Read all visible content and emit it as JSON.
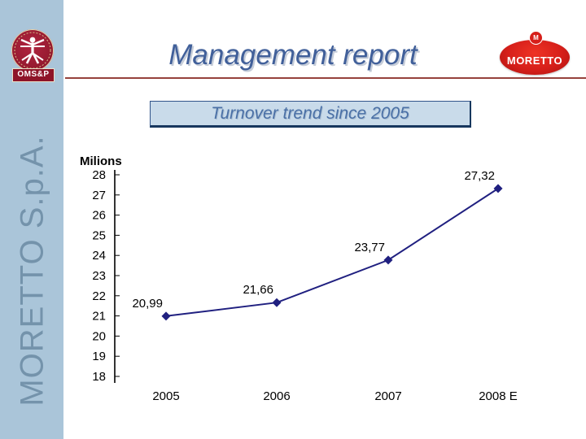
{
  "sidebar": {
    "company": "MORETTO S.p.A."
  },
  "logos": {
    "omsp_label": "OMS&P",
    "moretto_label": "MORETTO",
    "moretto_emblem": "M"
  },
  "header": {
    "title": "Management report"
  },
  "slide": {
    "subtitle": "Turnover trend since 2005"
  },
  "chart_data": {
    "type": "line",
    "title": "Turnover trend since 2005",
    "axis_unit_label": "Milions",
    "categories": [
      "2005",
      "2006",
      "2007",
      "2008 E"
    ],
    "values": [
      20.99,
      21.66,
      23.77,
      27.32
    ],
    "value_labels": [
      "20,99",
      "21,66",
      "23,77",
      "27,32"
    ],
    "ylim": [
      18,
      28
    ],
    "yticks": [
      18,
      19,
      20,
      21,
      22,
      23,
      24,
      25,
      26,
      27,
      28
    ],
    "grid": false,
    "legend": "none",
    "marker": "diamond",
    "line_color": "#202080",
    "label_color": "#000000"
  },
  "colors": {
    "sidebar_bg": "#aac5d9",
    "sidebar_text": "#7493ab",
    "title_text": "#41609a",
    "divider": "#96423c",
    "banner_bg": "#c9dbea",
    "banner_border": "#17375e",
    "banner_text": "#4a70a6",
    "logo_red": "#971b30",
    "moretto_red": "#d61f1a",
    "series_navy": "#202080"
  }
}
